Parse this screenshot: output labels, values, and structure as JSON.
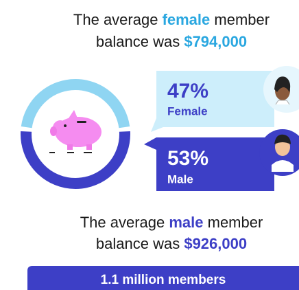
{
  "female_text": {
    "before": "The average ",
    "highlight": "female",
    "after": " member",
    "line2": "balance was ",
    "amount": "$794,000"
  },
  "male_text": {
    "before": "The average ",
    "highlight": "male",
    "after": " member",
    "line2": "balance was ",
    "amount": "$926,000"
  },
  "donut": {
    "names": [
      "Female",
      "Male"
    ],
    "values": [
      47,
      53
    ],
    "value_labels": [
      "47%",
      "53%"
    ],
    "colors": [
      "#8fd5f2",
      "#3d3fc6"
    ]
  },
  "banner": "1.1 million members"
}
